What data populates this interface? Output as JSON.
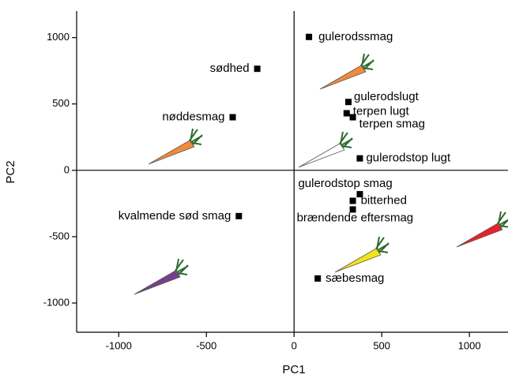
{
  "chart_data": {
    "type": "scatter",
    "xlabel": "PC1",
    "ylabel": "PC2",
    "color": "#000000",
    "x": [
      85,
      -210,
      -350,
      310,
      300,
      335,
      375,
      375,
      335,
      335,
      -315,
      135
    ],
    "y": [
      1005,
      765,
      400,
      515,
      430,
      400,
      90,
      -180,
      -230,
      -295,
      -345,
      -815
    ],
    "labels": [
      "gulerodssmag",
      "sødhed",
      "nøddesmag",
      "gulerodslugt",
      "terpen lugt",
      "terpen smag",
      "gulerodstop lugt",
      "gulerodstop smag",
      "bitterhed",
      "brændende eftersmag",
      "kvalmende sød smag",
      "sæbesmag"
    ],
    "xlim": [
      -1240,
      1220
    ],
    "ylim": [
      -1220,
      1200
    ],
    "xticks": [
      -1000,
      -500,
      0,
      500,
      1000
    ],
    "yticks": [
      -1000,
      -500,
      0,
      500,
      1000
    ]
  }
}
